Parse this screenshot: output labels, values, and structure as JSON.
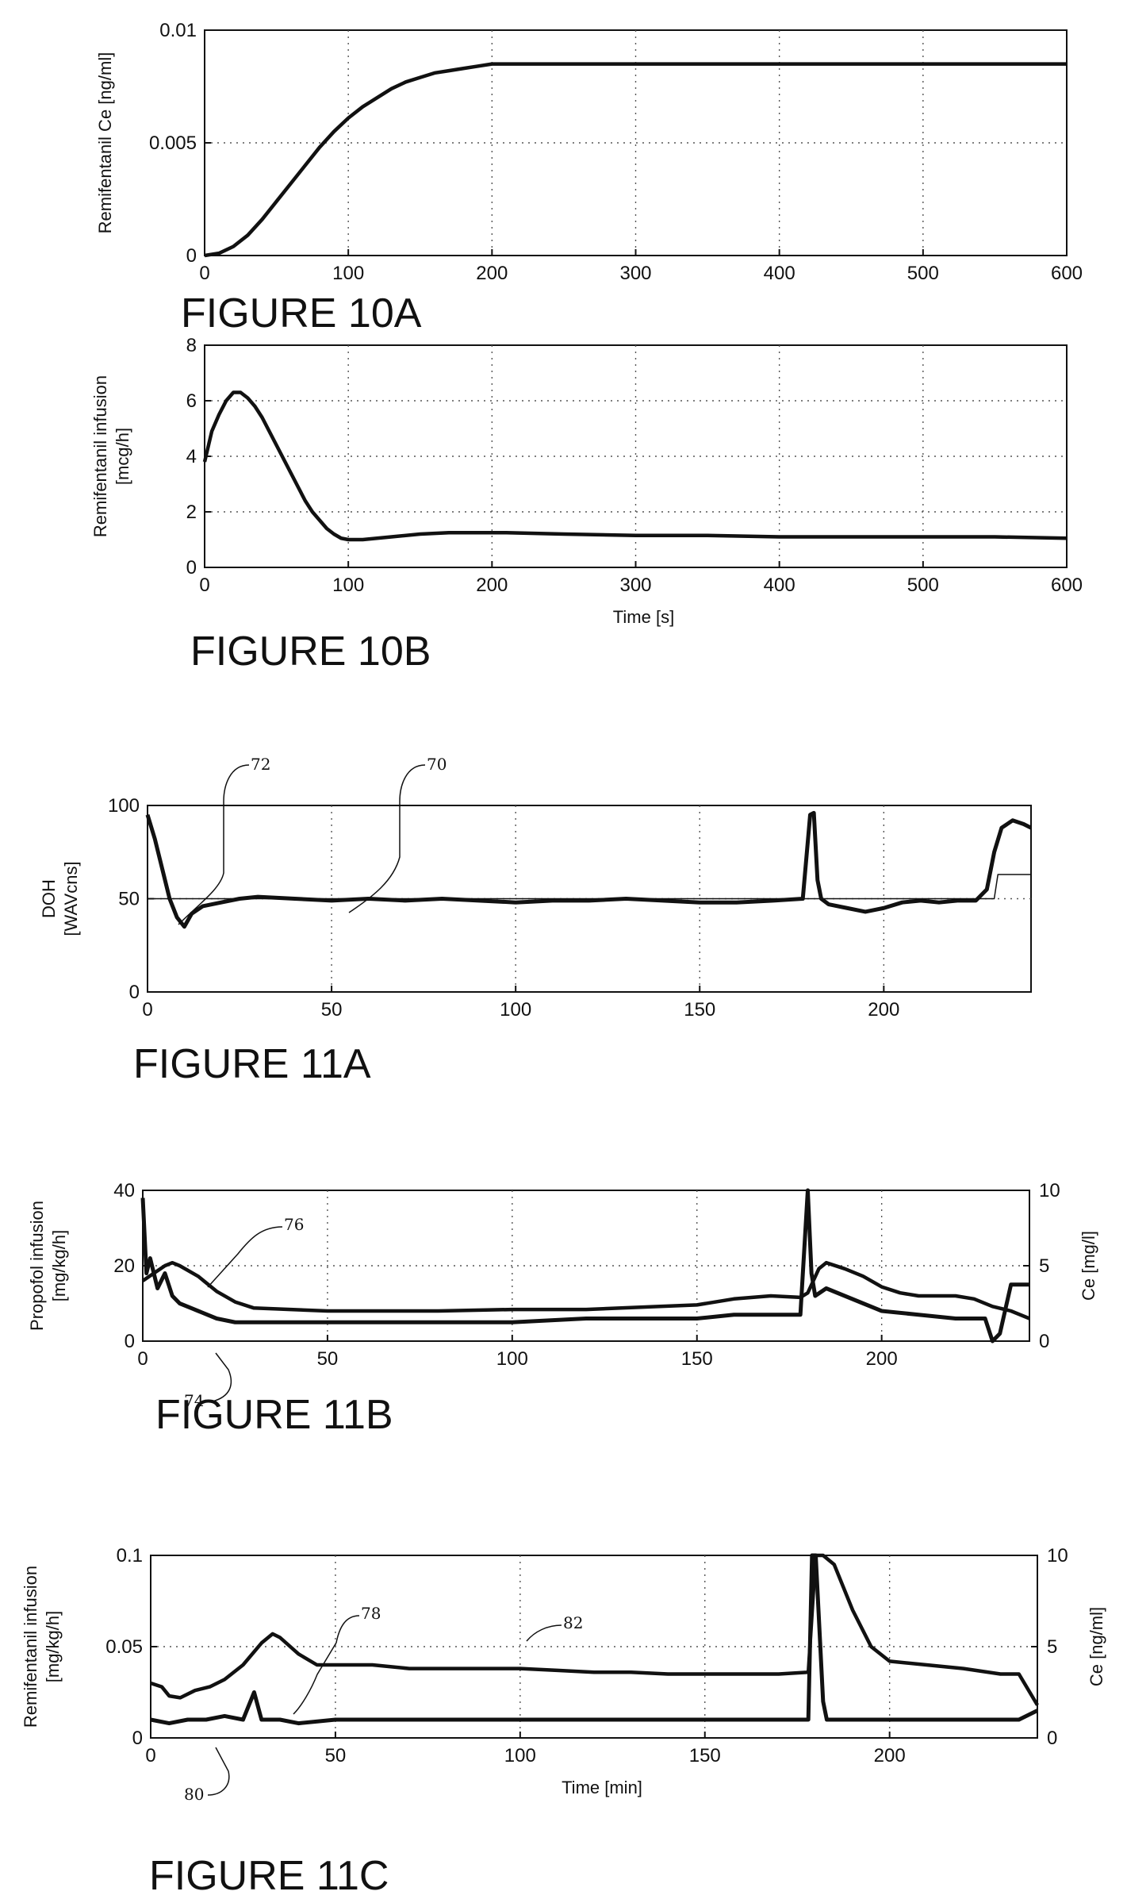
{
  "chart_data": [
    {
      "type": "line",
      "figure_label": "FIGURE 10A",
      "ylabel": "Remifentanil Ce [ng/ml]",
      "xlabel": "",
      "xlim": [
        0,
        600
      ],
      "ylim": [
        0,
        0.01
      ],
      "xticks": [
        "0",
        "100",
        "200",
        "300",
        "400",
        "500",
        "600"
      ],
      "yticks": [
        "0",
        "0.005",
        "0.01"
      ],
      "grid": true,
      "series": [
        {
          "x": [
            0,
            10,
            20,
            30,
            40,
            50,
            60,
            70,
            80,
            90,
            100,
            110,
            120,
            130,
            140,
            150,
            160,
            170,
            180,
            190,
            200,
            220,
            250,
            300,
            350,
            400,
            450,
            500,
            550,
            600
          ],
          "y": [
            0,
            0.0001,
            0.0004,
            0.0009,
            0.0016,
            0.0024,
            0.0032,
            0.004,
            0.0048,
            0.0055,
            0.0061,
            0.0066,
            0.007,
            0.0074,
            0.0077,
            0.0079,
            0.0081,
            0.0082,
            0.0083,
            0.0084,
            0.0085,
            0.0085,
            0.0085,
            0.0085,
            0.0085,
            0.0085,
            0.0085,
            0.0085,
            0.0085,
            0.0085
          ]
        }
      ]
    },
    {
      "type": "line",
      "figure_label": "FIGURE 10B",
      "ylabel": "Remifentanil infusion [mcg/h]",
      "xlabel": "Time [s]",
      "xlim": [
        0,
        600
      ],
      "ylim": [
        0,
        8
      ],
      "xticks": [
        "0",
        "100",
        "200",
        "300",
        "400",
        "500",
        "600"
      ],
      "yticks": [
        "0",
        "2",
        "4",
        "6",
        "8"
      ],
      "grid": true,
      "series": [
        {
          "x": [
            0,
            5,
            10,
            15,
            20,
            25,
            30,
            35,
            40,
            45,
            50,
            55,
            60,
            65,
            70,
            75,
            80,
            85,
            90,
            95,
            100,
            110,
            120,
            130,
            150,
            170,
            190,
            210,
            250,
            300,
            350,
            400,
            450,
            500,
            550,
            600
          ],
          "y": [
            3.8,
            4.9,
            5.5,
            6.0,
            6.3,
            6.3,
            6.1,
            5.8,
            5.4,
            4.9,
            4.4,
            3.9,
            3.4,
            2.9,
            2.4,
            2.0,
            1.7,
            1.4,
            1.2,
            1.05,
            1.0,
            1.0,
            1.05,
            1.1,
            1.2,
            1.25,
            1.25,
            1.25,
            1.2,
            1.15,
            1.15,
            1.1,
            1.1,
            1.1,
            1.1,
            1.05
          ]
        }
      ]
    },
    {
      "type": "line",
      "figure_label": "FIGURE 11A",
      "ylabel": "DOH [WAVcns]",
      "xlabel": "",
      "xlim": [
        0,
        240
      ],
      "ylim": [
        0,
        100
      ],
      "xticks": [
        "0",
        "50",
        "100",
        "150",
        "200"
      ],
      "yticks": [
        "0",
        "50",
        "100"
      ],
      "grid": true,
      "annotations": [
        "72",
        "70"
      ],
      "series": [
        {
          "x": [
            0,
            2,
            4,
            6,
            8,
            10,
            12,
            15,
            20,
            25,
            30,
            40,
            50,
            60,
            70,
            80,
            90,
            100,
            110,
            120,
            130,
            140,
            150,
            160,
            170,
            178,
            180,
            181,
            182,
            183,
            185,
            190,
            195,
            200,
            205,
            210,
            215,
            220,
            225,
            228,
            230,
            232,
            235,
            238,
            240
          ],
          "y": [
            95,
            82,
            66,
            50,
            40,
            35,
            42,
            46,
            48,
            50,
            51,
            50,
            49,
            50,
            49,
            50,
            49,
            48,
            49,
            49,
            50,
            49,
            48,
            48,
            49,
            50,
            95,
            96,
            60,
            50,
            47,
            45,
            43,
            45,
            48,
            49,
            48,
            49,
            49,
            55,
            75,
            88,
            92,
            90,
            88
          ]
        },
        {
          "x": [
            0,
            10,
            180,
            181,
            230,
            231,
            240
          ],
          "y": [
            50,
            50,
            50,
            50,
            50,
            63,
            63
          ]
        }
      ]
    },
    {
      "type": "line",
      "figure_label": "FIGURE 11B",
      "ylabel": "Propofol infusion [mg/kg/h]",
      "y2label": "Ce [mg/l]",
      "xlabel": "",
      "xlim": [
        0,
        240
      ],
      "ylim": [
        0,
        40
      ],
      "y2lim": [
        0,
        10
      ],
      "xticks": [
        "0",
        "50",
        "100",
        "150",
        "200"
      ],
      "yticks": [
        "0",
        "20",
        "40"
      ],
      "y2ticks": [
        "0",
        "5",
        "10"
      ],
      "grid": true,
      "annotations": [
        "76",
        "74"
      ],
      "series": [
        {
          "x": [
            0,
            1,
            2,
            4,
            6,
            8,
            10,
            15,
            20,
            25,
            30,
            40,
            50,
            60,
            80,
            100,
            120,
            140,
            150,
            160,
            170,
            178,
            180,
            181,
            182,
            185,
            190,
            195,
            200,
            210,
            220,
            228,
            230,
            232,
            235,
            238,
            240
          ],
          "y": [
            38,
            18,
            22,
            14,
            18,
            12,
            10,
            8,
            6,
            5,
            5,
            5,
            5,
            5,
            5,
            5,
            6,
            6,
            6,
            7,
            7,
            7,
            40,
            18,
            12,
            14,
            12,
            10,
            8,
            7,
            6,
            6,
            0,
            2,
            15,
            15,
            15
          ]
        },
        {
          "x": [
            0,
            3,
            6,
            8,
            10,
            15,
            20,
            25,
            30,
            40,
            50,
            60,
            80,
            100,
            120,
            140,
            150,
            160,
            170,
            178,
            180,
            183,
            185,
            190,
            195,
            200,
            205,
            210,
            220,
            225,
            230,
            235,
            240
          ],
          "y": [
            4,
            4.5,
            5,
            5.2,
            5.0,
            4.3,
            3.3,
            2.6,
            2.2,
            2.1,
            2.0,
            2.0,
            2.0,
            2.1,
            2.1,
            2.3,
            2.4,
            2.8,
            3.0,
            2.9,
            3.2,
            4.8,
            5.2,
            4.8,
            4.3,
            3.6,
            3.2,
            3.0,
            3.0,
            2.8,
            2.3,
            2.0,
            1.5
          ]
        }
      ]
    },
    {
      "type": "line",
      "figure_label": "FIGURE 11C",
      "ylabel": "Remifentanil infusion [mg/kg/h]",
      "y2label": "Ce [ng/ml]",
      "xlabel": "Time [min]",
      "xlim": [
        0,
        240
      ],
      "ylim": [
        0,
        0.1
      ],
      "y2lim": [
        0,
        10
      ],
      "xticks": [
        "0",
        "50",
        "100",
        "150",
        "200"
      ],
      "yticks": [
        "0",
        "0.05",
        "0.1"
      ],
      "y2ticks": [
        "0",
        "5",
        "10"
      ],
      "grid": true,
      "annotations": [
        "78",
        "82",
        "80"
      ],
      "series": [
        {
          "x": [
            0,
            5,
            10,
            15,
            20,
            25,
            28,
            30,
            35,
            40,
            50,
            60,
            80,
            100,
            120,
            140,
            160,
            175,
            178,
            179,
            180,
            182,
            183,
            185,
            190,
            200,
            220,
            235,
            240
          ],
          "y": [
            0.01,
            0.008,
            0.01,
            0.01,
            0.012,
            0.01,
            0.025,
            0.01,
            0.01,
            0.008,
            0.01,
            0.01,
            0.01,
            0.01,
            0.01,
            0.01,
            0.01,
            0.01,
            0.01,
            0.1,
            0.1,
            0.02,
            0.01,
            0.01,
            0.01,
            0.01,
            0.01,
            0.01,
            0.015
          ]
        },
        {
          "x": [
            0,
            3,
            5,
            8,
            12,
            16,
            20,
            25,
            30,
            33,
            35,
            40,
            45,
            50,
            60,
            70,
            80,
            90,
            100,
            110,
            120,
            130,
            140,
            150,
            160,
            170,
            178,
            180,
            182,
            185,
            190,
            195,
            200,
            210,
            220,
            230,
            235,
            240
          ],
          "y": [
            3.0,
            2.8,
            2.3,
            2.2,
            2.6,
            2.8,
            3.2,
            4.0,
            5.2,
            5.7,
            5.5,
            4.6,
            4.0,
            4.0,
            4.0,
            3.8,
            3.8,
            3.8,
            3.8,
            3.7,
            3.6,
            3.6,
            3.5,
            3.5,
            3.5,
            3.5,
            3.6,
            10,
            10,
            9.5,
            7,
            5,
            4.2,
            4.0,
            3.8,
            3.5,
            3.5,
            1.8
          ]
        }
      ]
    }
  ]
}
